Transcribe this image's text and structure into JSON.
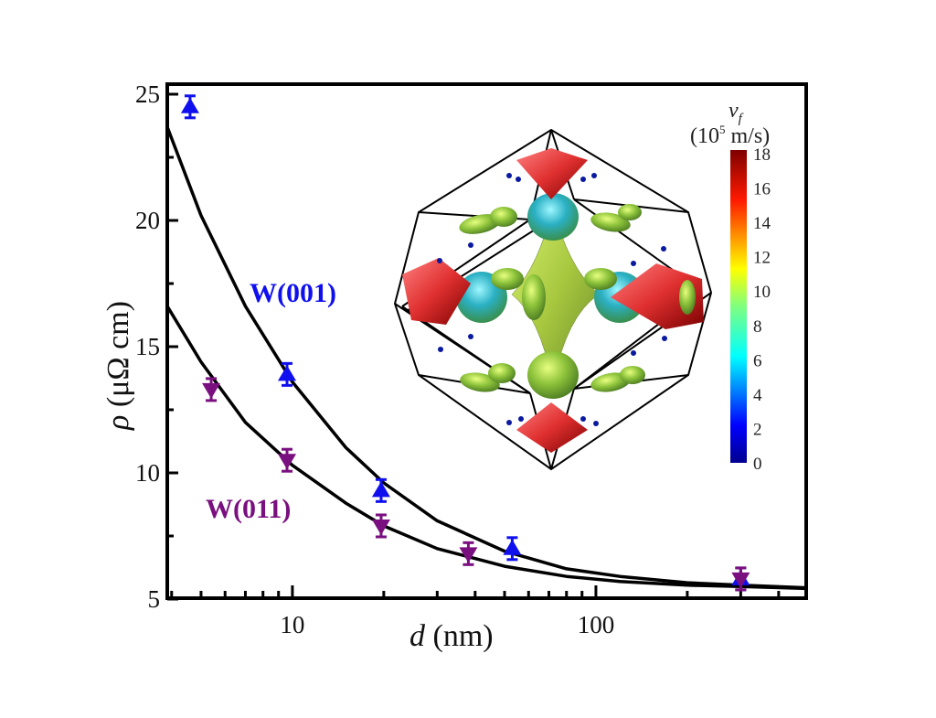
{
  "chart_data": {
    "type": "scatter",
    "title": "",
    "xlabel": "d (nm)",
    "xlabel_italic": "d",
    "xlabel_unit": "(nm)",
    "ylabel": "ρ (μΩ cm)",
    "ylabel_italic": "ρ",
    "ylabel_unit": "(μΩ cm)",
    "xscale": "log",
    "xlim": [
      3.87,
      493
    ],
    "ylim": [
      5,
      25.5
    ],
    "x_ticks": [
      10,
      100
    ],
    "x_tick_labels": [
      "10",
      "100"
    ],
    "y_ticks": [
      5,
      10,
      15,
      20,
      25
    ],
    "y_tick_labels": [
      "5",
      "10",
      "15",
      "20",
      "25"
    ],
    "grid": false,
    "series": [
      {
        "name": "W(001)",
        "color": "#1010ee",
        "marker": "triangle-up",
        "x": [
          4.6,
          9.6,
          19.6,
          53,
          300
        ],
        "values": [
          24.5,
          13.9,
          9.3,
          7.0,
          5.8
        ],
        "fit_curve": {
          "x": [
            3.87,
            5,
            7,
            10,
            15,
            20,
            30,
            50,
            80,
            120,
            200,
            300,
            493
          ],
          "y": [
            23.7,
            20.2,
            16.6,
            13.6,
            11.0,
            9.6,
            8.1,
            6.9,
            6.2,
            5.9,
            5.65,
            5.55,
            5.45
          ]
        }
      },
      {
        "name": "W(011)",
        "color": "#7a0f7f",
        "marker": "triangle-down",
        "x": [
          5.4,
          9.6,
          19.6,
          38,
          300
        ],
        "values": [
          13.3,
          10.5,
          7.9,
          6.8,
          5.8
        ],
        "fit_curve": {
          "x": [
            3.87,
            5,
            7,
            10,
            15,
            20,
            30,
            50,
            80,
            120,
            200,
            300,
            493
          ],
          "y": [
            16.6,
            14.4,
            12.0,
            10.3,
            8.8,
            7.9,
            7.0,
            6.3,
            5.9,
            5.7,
            5.55,
            5.5,
            5.42
          ]
        }
      }
    ],
    "annotations": [
      {
        "text": "W(001)",
        "color": "#1010ee"
      },
      {
        "text": "W(011)",
        "color": "#7a0f7f"
      }
    ],
    "inset": {
      "description": "Fermi surface of W within Brillouin zone, colored by Fermi velocity",
      "colorbar": {
        "title": "v_f",
        "unit": "(10^5 m/s)",
        "unit_base": "(10",
        "unit_exp": "5",
        "unit_rest": " m/s)",
        "min": 0,
        "max": 18,
        "ticks": [
          "0",
          "2",
          "4",
          "6",
          "8",
          "10",
          "12",
          "14",
          "16",
          "18"
        ],
        "colormap": "jet"
      }
    }
  }
}
